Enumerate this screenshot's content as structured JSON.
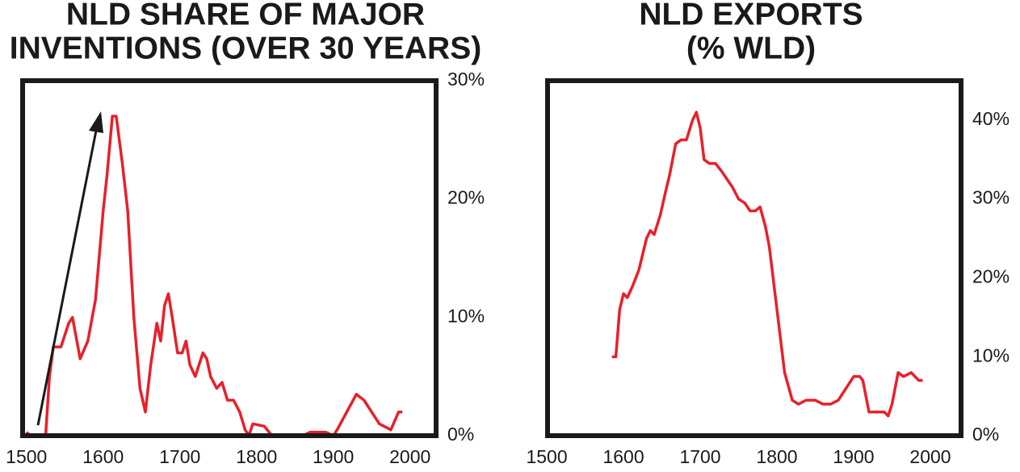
{
  "chart_data": [
    {
      "type": "line",
      "title": [
        "NLD SHARE OF MAJOR",
        "INVENTIONS (OVER 30 YEARS)"
      ],
      "x": [
        1500,
        1505,
        1525,
        1530,
        1535,
        1545,
        1555,
        1560,
        1570,
        1580,
        1590,
        1600,
        1605,
        1612,
        1617,
        1625,
        1632,
        1640,
        1648,
        1655,
        1662,
        1670,
        1675,
        1680,
        1685,
        1690,
        1697,
        1703,
        1708,
        1713,
        1720,
        1730,
        1735,
        1740,
        1748,
        1755,
        1762,
        1770,
        1778,
        1785,
        1790,
        1795,
        1810,
        1820,
        1860,
        1870,
        1890,
        1900,
        1905,
        1930,
        1940,
        1960,
        1975,
        1985,
        1990
      ],
      "series": [
        {
          "color": "#e8202a",
          "values": [
            0.3,
            0,
            0,
            5,
            7.5,
            7.5,
            9.5,
            10,
            6.5,
            8,
            11.5,
            19,
            22,
            27,
            27,
            23,
            19,
            10,
            4,
            2,
            6,
            9.5,
            8,
            11,
            12,
            10,
            7,
            7,
            8,
            6,
            5,
            7,
            6.5,
            5,
            4,
            4.5,
            3,
            3,
            2,
            0.5,
            0,
            1,
            0.8,
            0,
            0,
            0.3,
            0.3,
            0,
            0.5,
            3.5,
            3,
            1,
            0.5,
            2,
            2
          ]
        }
      ],
      "xlim": [
        1495,
        2034
      ],
      "xticks": [
        1500,
        1600,
        1700,
        1800,
        1900,
        2000
      ],
      "ylim": [
        0,
        30
      ],
      "yticks": [
        {
          "value": 0,
          "label": "0%"
        },
        {
          "value": 10,
          "label": "10%"
        },
        {
          "value": 20,
          "label": "20%"
        },
        {
          "value": 30,
          "label": "30%"
        }
      ]
    },
    {
      "type": "line",
      "title": [
        "NLD EXPORTS",
        "(% WLD)"
      ],
      "x": [
        1585,
        1590,
        1595,
        1600,
        1605,
        1612,
        1620,
        1630,
        1635,
        1640,
        1648,
        1655,
        1660,
        1668,
        1675,
        1682,
        1690,
        1695,
        1700,
        1705,
        1712,
        1720,
        1728,
        1735,
        1742,
        1750,
        1758,
        1765,
        1772,
        1778,
        1785,
        1790,
        1800,
        1810,
        1820,
        1828,
        1838,
        1850,
        1860,
        1870,
        1880,
        1890,
        1900,
        1908,
        1912,
        1920,
        1930,
        1940,
        1945,
        1950,
        1958,
        1965,
        1975,
        1980,
        1985,
        1990
      ],
      "series": [
        {
          "color": "#e8202a",
          "values": [
            10,
            10,
            16,
            18,
            17.5,
            19,
            21,
            25,
            26,
            25.5,
            28,
            31,
            33,
            37,
            37.5,
            37.5,
            40,
            41,
            39,
            35,
            34.5,
            34.5,
            33.5,
            32.5,
            31.5,
            30,
            29.5,
            28.5,
            28.5,
            29,
            26.5,
            24,
            16,
            8,
            4.5,
            4,
            4.5,
            4.5,
            4,
            4,
            4.5,
            6,
            7.5,
            7.5,
            7,
            3,
            3,
            3,
            2.5,
            4,
            8,
            7.5,
            8,
            7.5,
            7,
            7
          ]
        }
      ],
      "xlim": [
        1501,
        2040
      ],
      "xticks": [
        1500,
        1600,
        1700,
        1800,
        1900,
        2000
      ],
      "ylim": [
        0,
        45
      ],
      "yticks": [
        {
          "value": 0,
          "label": "0%"
        },
        {
          "value": 10,
          "label": "10%"
        },
        {
          "value": 20,
          "label": "20%"
        },
        {
          "value": 30,
          "label": "30%"
        },
        {
          "value": 40,
          "label": "40%"
        }
      ]
    }
  ]
}
